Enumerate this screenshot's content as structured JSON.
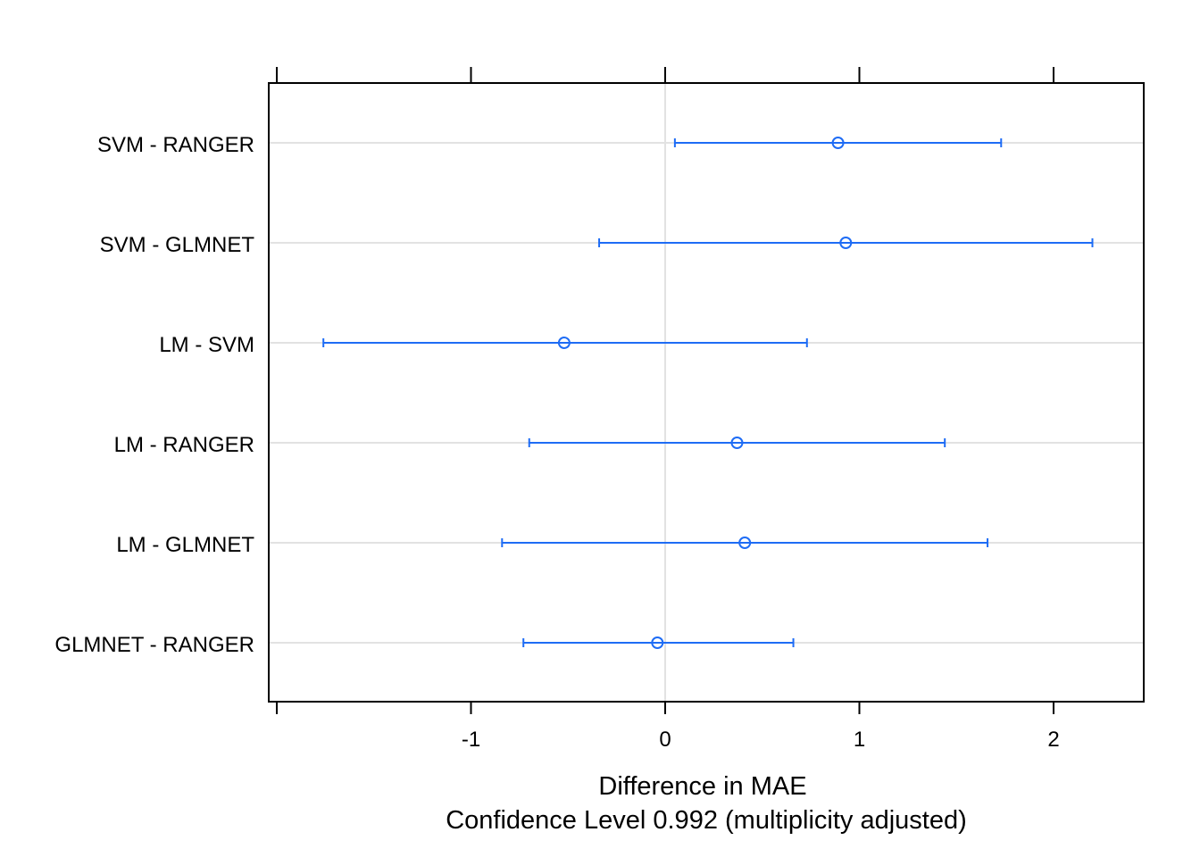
{
  "chart_data": {
    "type": "dotplot-errorbar",
    "categories": [
      "SVM - RANGER",
      "SVM - GLMNET",
      "LM - SVM",
      "LM - RANGER",
      "LM - GLMNET",
      "GLMNET - RANGER"
    ],
    "estimates": [
      0.89,
      0.93,
      -0.52,
      0.37,
      0.41,
      -0.04
    ],
    "lower": [
      0.05,
      -0.34,
      -1.76,
      -0.7,
      -0.84,
      -0.73
    ],
    "upper": [
      1.73,
      2.2,
      0.73,
      1.44,
      1.66,
      0.66
    ],
    "x_ticks": [
      -1,
      0,
      1,
      2
    ],
    "x_tick_labels": [
      "-1",
      "0",
      "1",
      "2"
    ],
    "xlim": [
      -1.8,
      2.5
    ],
    "reference_line": 0,
    "xlabel": "Difference in MAE",
    "xlabel2": "Confidence Level 0.992  (multiplicity adjusted)",
    "ylabel": "",
    "series_color": "#1E6CF5",
    "gridline_color": "#E2E2E2",
    "grid": true
  }
}
